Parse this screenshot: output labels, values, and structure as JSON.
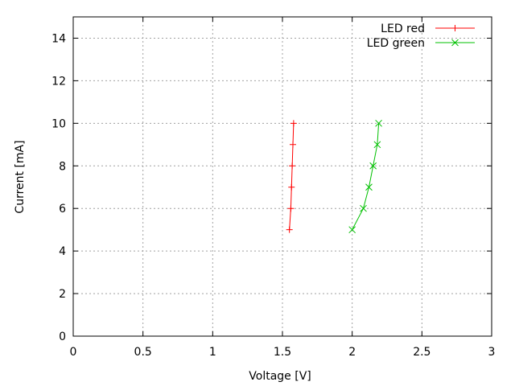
{
  "chart_data": {
    "type": "line",
    "title": "",
    "xlabel": "Voltage [V]",
    "ylabel": "Current [mA]",
    "xlim": [
      0,
      3
    ],
    "ylim": [
      0,
      15
    ],
    "xticks": [
      "0",
      "0.5",
      "1",
      "1.5",
      "2",
      "2.5",
      "3"
    ],
    "yticks": [
      "0",
      "2",
      "4",
      "6",
      "8",
      "10",
      "12",
      "14"
    ],
    "grid": true,
    "legend_position": "top-right",
    "series": [
      {
        "name": "LED red",
        "color": "#ff0000",
        "marker": "plus",
        "x": [
          1.55,
          1.56,
          1.565,
          1.57,
          1.575,
          1.58
        ],
        "y": [
          5,
          6,
          7,
          8,
          9,
          10
        ]
      },
      {
        "name": "LED green",
        "color": "#00c000",
        "marker": "cross",
        "x": [
          2.0,
          2.08,
          2.12,
          2.15,
          2.18,
          2.19
        ],
        "y": [
          5,
          6,
          7,
          8,
          9,
          10
        ]
      }
    ]
  }
}
